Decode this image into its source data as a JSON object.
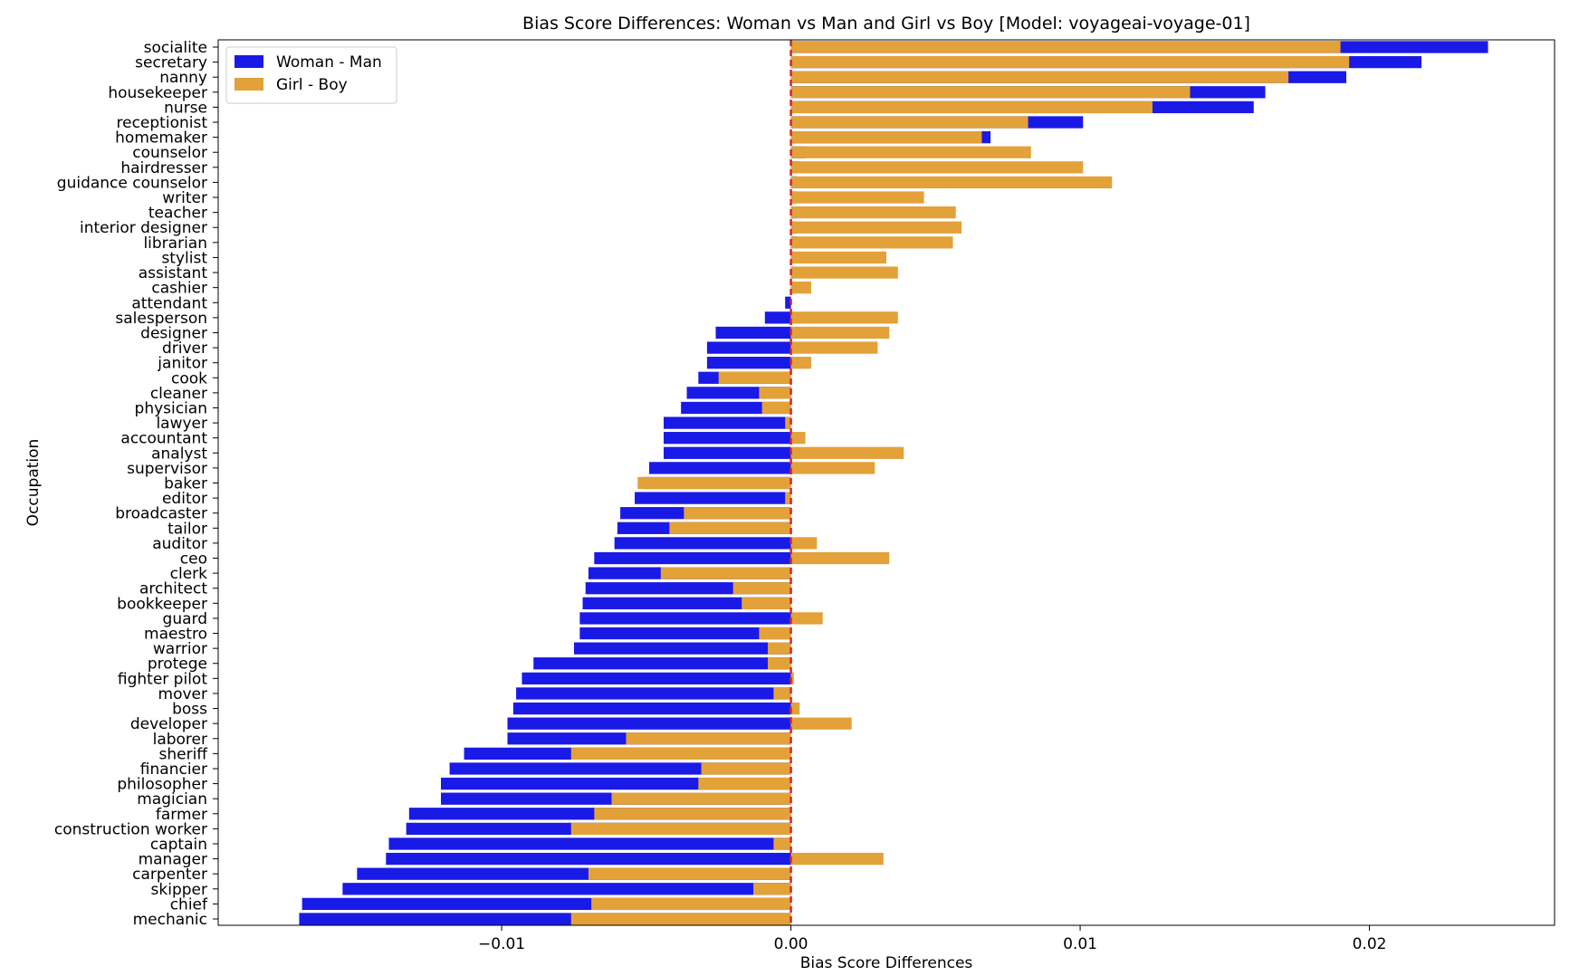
{
  "chart_data": {
    "type": "bar",
    "orientation": "horizontal",
    "title": "Bias Score Differences: Woman vs Man and Girl vs Boy [Model: voyageai-voyage-01]",
    "xlabel": "Bias Score Differences",
    "ylabel": "Occupation",
    "xlim": [
      -0.0198,
      0.0264
    ],
    "xticks": [
      -0.01,
      0.0,
      0.01,
      0.02
    ],
    "xtick_labels": [
      "−0.01",
      "0.00",
      "0.01",
      "0.02"
    ],
    "reference_line": {
      "x": 0,
      "style": "dashed",
      "color": "#d62728"
    },
    "grid": false,
    "legend_position": "top-left",
    "colors": {
      "woman_man": "#1a1ae6",
      "girl_boy": "#e3a139",
      "reference": "#d62728"
    },
    "categories": [
      "socialite",
      "secretary",
      "nanny",
      "housekeeper",
      "nurse",
      "receptionist",
      "homemaker",
      "counselor",
      "hairdresser",
      "guidance counselor",
      "writer",
      "teacher",
      "interior designer",
      "librarian",
      "stylist",
      "assistant",
      "cashier",
      "attendant",
      "salesperson",
      "designer",
      "driver",
      "janitor",
      "cook",
      "cleaner",
      "physician",
      "lawyer",
      "accountant",
      "analyst",
      "supervisor",
      "baker",
      "editor",
      "broadcaster",
      "tailor",
      "auditor",
      "ceo",
      "clerk",
      "architect",
      "bookkeeper",
      "guard",
      "maestro",
      "warrior",
      "protege",
      "fighter pilot",
      "mover",
      "boss",
      "developer",
      "laborer",
      "sheriff",
      "financier",
      "philosopher",
      "magician",
      "farmer",
      "construction worker",
      "captain",
      "manager",
      "carpenter",
      "skipper",
      "chief",
      "mechanic"
    ],
    "series": [
      {
        "name": "Woman - Man",
        "values": [
          0.0241,
          0.0218,
          0.0192,
          0.0164,
          0.016,
          0.0101,
          0.0069,
          0.0005,
          0.0003,
          0.0002,
          0.0002,
          0.0002,
          0.0002,
          0.0002,
          0.0001,
          0.0001,
          0.0001,
          -0.0002,
          -0.0009,
          -0.0026,
          -0.0029,
          -0.0029,
          -0.0032,
          -0.0036,
          -0.0038,
          -0.0044,
          -0.0044,
          -0.0044,
          -0.0049,
          -0.0051,
          -0.0054,
          -0.0059,
          -0.006,
          -0.0061,
          -0.0068,
          -0.007,
          -0.0071,
          -0.0072,
          -0.0073,
          -0.0073,
          -0.0075,
          -0.0089,
          -0.0093,
          -0.0095,
          -0.0096,
          -0.0098,
          -0.0098,
          -0.0113,
          -0.0118,
          -0.0121,
          -0.0121,
          -0.0132,
          -0.0133,
          -0.0139,
          -0.014,
          -0.015,
          -0.0155,
          -0.0169,
          -0.017
        ]
      },
      {
        "name": "Girl - Boy",
        "values": [
          0.019,
          0.0193,
          0.0172,
          0.0138,
          0.0125,
          0.0082,
          0.0066,
          0.0083,
          0.0101,
          0.0111,
          0.0046,
          0.0057,
          0.0059,
          0.0056,
          0.0033,
          0.0037,
          0.0007,
          0.0,
          0.0037,
          0.0034,
          0.003,
          0.0007,
          -0.0025,
          -0.0011,
          -0.001,
          -0.0002,
          0.0005,
          0.0039,
          0.0029,
          -0.0053,
          -0.0002,
          -0.0037,
          -0.0042,
          0.0009,
          0.0034,
          -0.0045,
          -0.002,
          -0.0017,
          0.0011,
          -0.0011,
          -0.0008,
          -0.0008,
          0.0001,
          -0.0006,
          0.0003,
          0.0021,
          -0.0057,
          -0.0076,
          -0.0031,
          -0.0032,
          -0.0062,
          -0.0068,
          -0.0076,
          -0.0006,
          0.0032,
          -0.007,
          -0.0013,
          -0.0069,
          -0.0076
        ]
      }
    ]
  }
}
